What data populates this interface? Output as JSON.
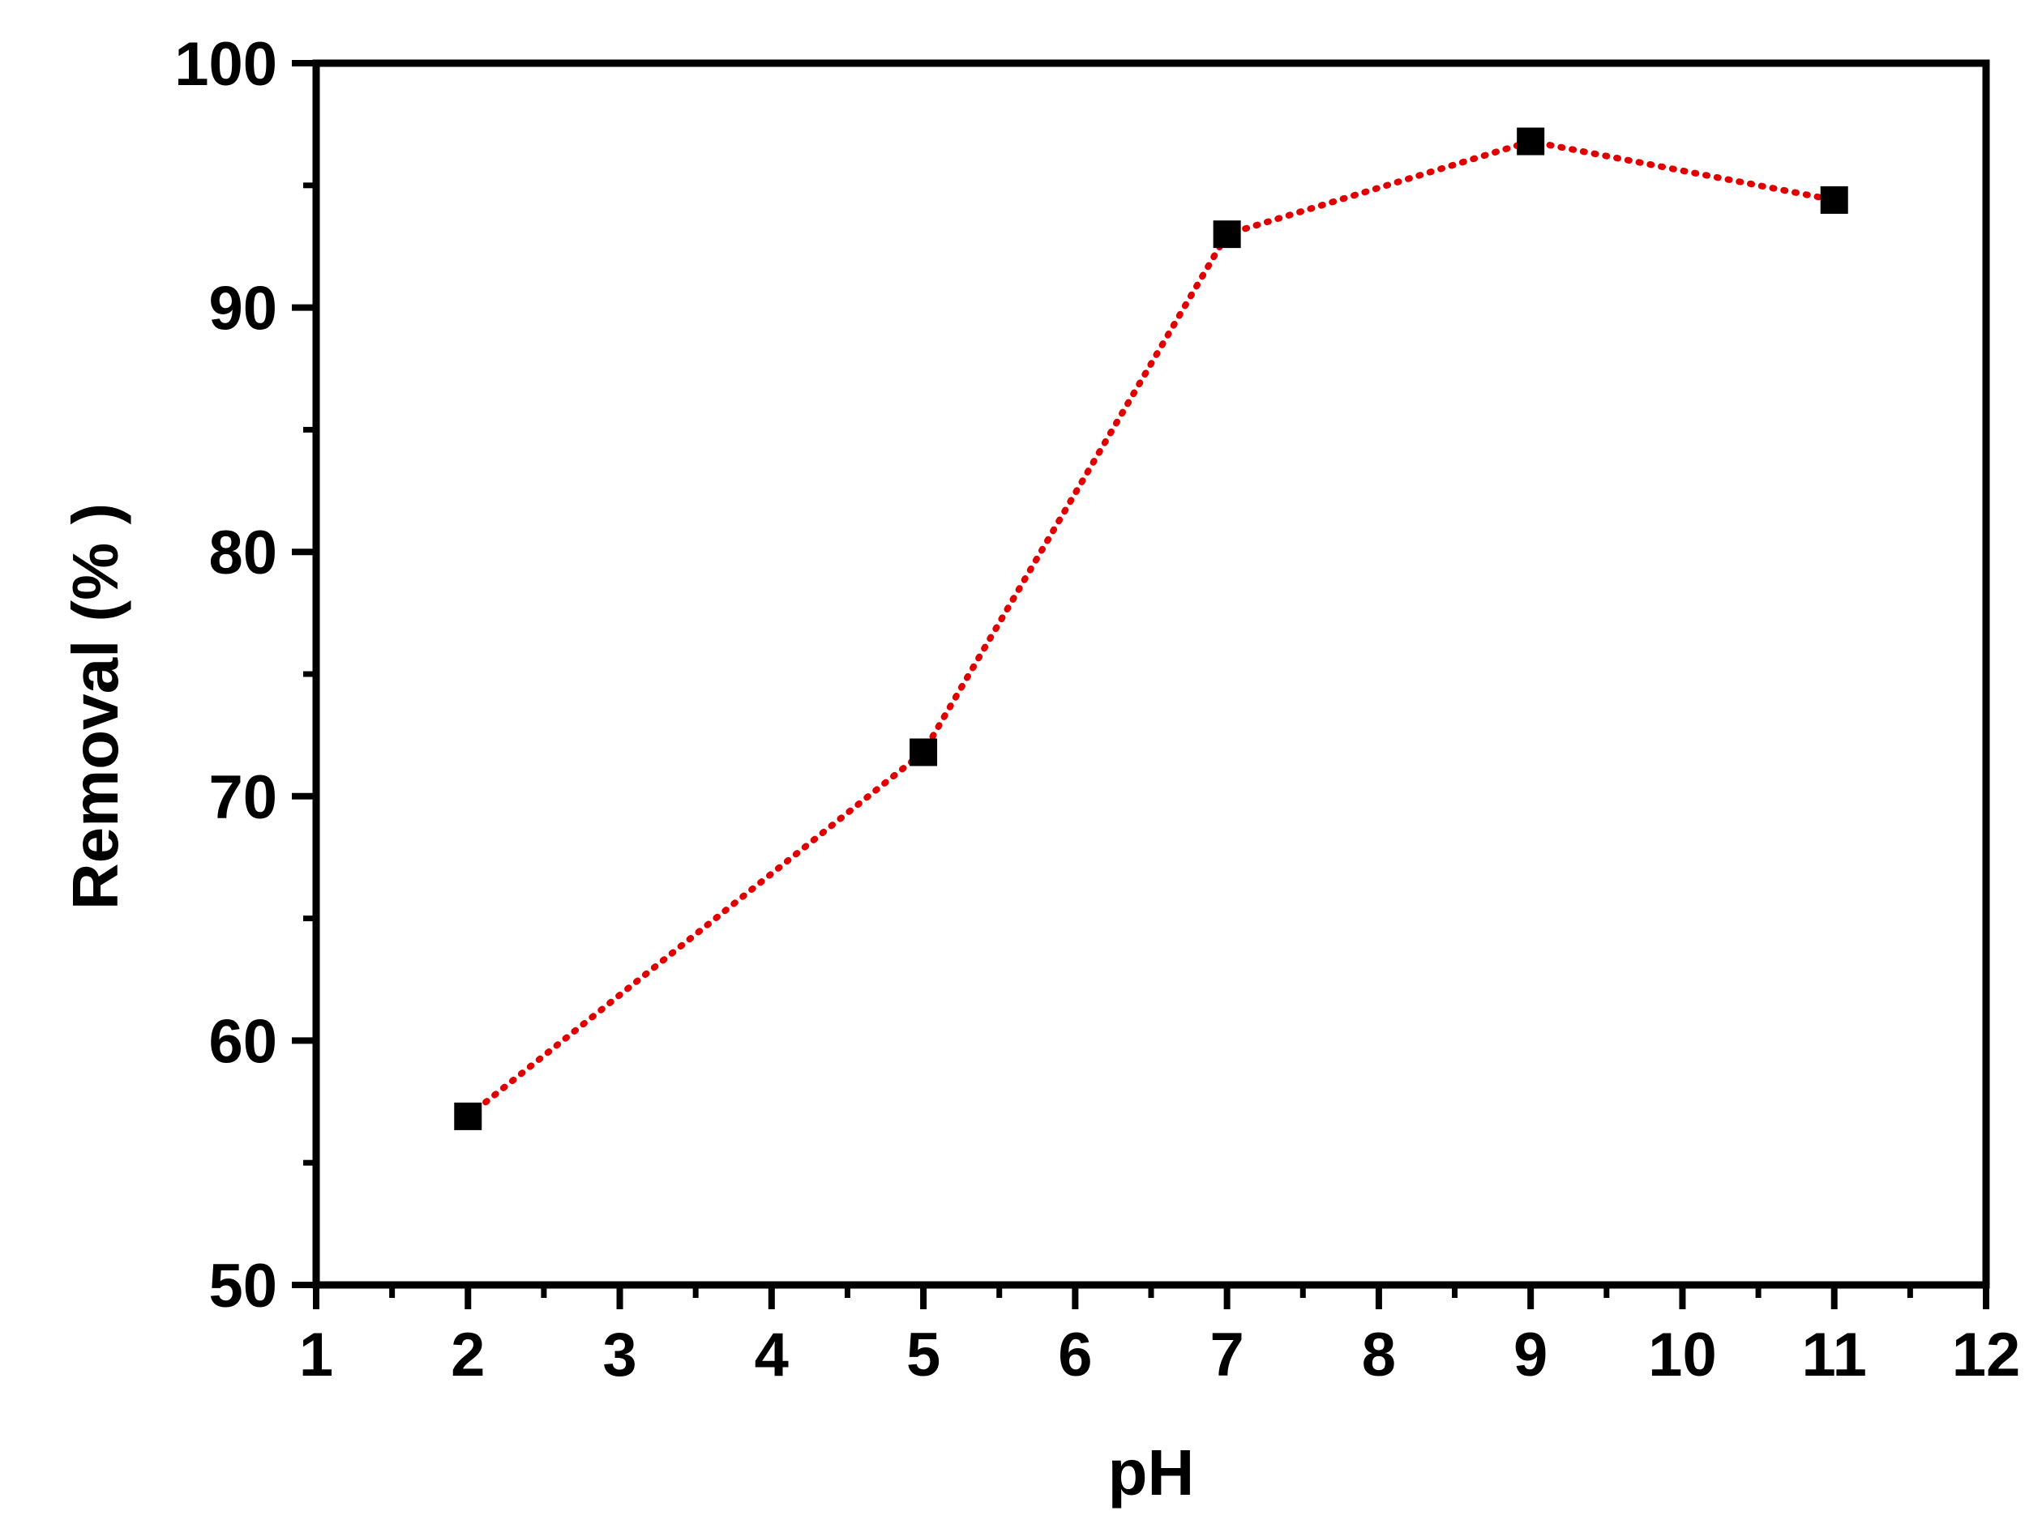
{
  "chart_data": {
    "type": "line",
    "xlabel": "pH",
    "ylabel": "Removal (% )",
    "xlim": [
      1,
      12
    ],
    "ylim": [
      50,
      100
    ],
    "x_ticks": [
      1,
      2,
      3,
      4,
      5,
      6,
      7,
      8,
      9,
      10,
      11,
      12
    ],
    "y_ticks": [
      50,
      60,
      70,
      80,
      90,
      100
    ],
    "grid": false,
    "legend": "none",
    "series": [
      {
        "x": [
          2,
          5,
          7,
          9,
          11
        ],
        "y": [
          56.9,
          71.8,
          93.0,
          96.8,
          94.4
        ],
        "line_style": "dotted",
        "line_color": "#e00000",
        "marker": "square",
        "marker_color": "#000000"
      }
    ]
  }
}
